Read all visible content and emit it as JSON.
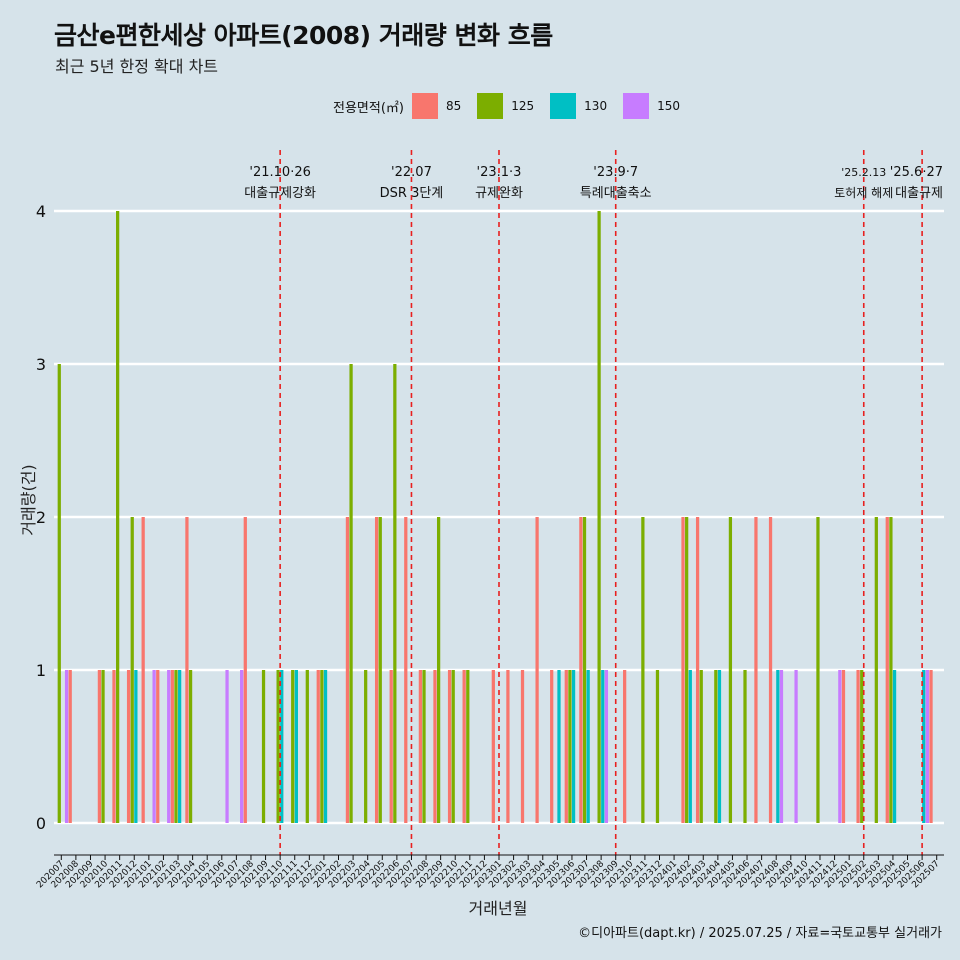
{
  "title": "금산e편한세상 아파트(2008) 거래량 변화 흐름",
  "subtitle": "최근 5년 한정 확대 차트",
  "caption": "©디아파트(dapt.kr) / 2025.07.25 / 자료=국토교통부 실거래가",
  "legend": {
    "title": "전용면적(㎡)",
    "items": [
      {
        "label": "85",
        "color": "#f8766d"
      },
      {
        "label": "125",
        "color": "#7cae00"
      },
      {
        "label": "130",
        "color": "#00bfc4"
      },
      {
        "label": "150",
        "color": "#c77cff"
      }
    ]
  },
  "chart_data": {
    "type": "bar",
    "xlabel": "거래년월",
    "ylabel": "거래량(건)",
    "ylim": [
      0,
      4
    ],
    "yticks": [
      0,
      1,
      2,
      3,
      4
    ],
    "grid": true,
    "legend_position": "top",
    "categories": [
      "202007",
      "202008",
      "202009",
      "202010",
      "202011",
      "202012",
      "202101",
      "202102",
      "202103",
      "202104",
      "202105",
      "202106",
      "202107",
      "202108",
      "202109",
      "202110",
      "202111",
      "202112",
      "202201",
      "202202",
      "202203",
      "202204",
      "202205",
      "202206",
      "202207",
      "202208",
      "202209",
      "202210",
      "202211",
      "202212",
      "202301",
      "202302",
      "202303",
      "202304",
      "202305",
      "202306",
      "202307",
      "202308",
      "202309",
      "202310",
      "202311",
      "202312",
      "202401",
      "202402",
      "202403",
      "202404",
      "202405",
      "202406",
      "202407",
      "202408",
      "202409",
      "202410",
      "202411",
      "202412",
      "202501",
      "202502",
      "202503",
      "202504",
      "202505",
      "202506",
      "202507"
    ],
    "series": [
      {
        "name": "85",
        "color": "#f8766d",
        "values": [
          0,
          1,
          0,
          1,
          1,
          1,
          2,
          1,
          1,
          2,
          0,
          0,
          0,
          2,
          0,
          0,
          0,
          0,
          1,
          0,
          2,
          0,
          2,
          1,
          2,
          1,
          1,
          1,
          1,
          0,
          1,
          1,
          1,
          2,
          1,
          1,
          2,
          0,
          0,
          1,
          0,
          0,
          0,
          2,
          2,
          0,
          0,
          0,
          2,
          2,
          0,
          0,
          0,
          0,
          1,
          1,
          0,
          2,
          0,
          0,
          1
        ]
      },
      {
        "name": "125",
        "color": "#7cae00",
        "values": [
          3,
          0,
          0,
          1,
          4,
          2,
          0,
          0,
          1,
          1,
          0,
          0,
          0,
          0,
          1,
          1,
          1,
          1,
          1,
          0,
          3,
          1,
          2,
          3,
          0,
          1,
          2,
          1,
          1,
          0,
          0,
          0,
          0,
          0,
          0,
          1,
          2,
          4,
          0,
          0,
          2,
          1,
          0,
          2,
          1,
          1,
          2,
          1,
          0,
          0,
          0,
          0,
          2,
          0,
          0,
          1,
          2,
          2,
          0,
          0,
          0
        ]
      },
      {
        "name": "130",
        "color": "#00bfc4",
        "values": [
          0,
          0,
          0,
          0,
          0,
          1,
          0,
          0,
          1,
          0,
          0,
          0,
          0,
          0,
          0,
          1,
          1,
          0,
          1,
          0,
          0,
          0,
          0,
          0,
          0,
          0,
          0,
          0,
          0,
          0,
          0,
          0,
          0,
          0,
          1,
          1,
          1,
          1,
          0,
          0,
          0,
          0,
          0,
          1,
          0,
          1,
          0,
          0,
          0,
          1,
          0,
          0,
          0,
          0,
          0,
          0,
          0,
          1,
          0,
          1,
          0
        ]
      },
      {
        "name": "150",
        "color": "#c77cff",
        "values": [
          1,
          0,
          0,
          0,
          0,
          0,
          1,
          1,
          0,
          0,
          0,
          1,
          1,
          0,
          0,
          0,
          0,
          0,
          0,
          0,
          0,
          0,
          0,
          0,
          0,
          0,
          0,
          0,
          0,
          0,
          0,
          0,
          0,
          0,
          0,
          0,
          0,
          1,
          0,
          0,
          0,
          0,
          0,
          0,
          0,
          0,
          0,
          0,
          0,
          1,
          1,
          0,
          0,
          1,
          0,
          0,
          0,
          0,
          0,
          1,
          0
        ]
      }
    ],
    "annotations": [
      {
        "x": "202110",
        "date": "'21.10·26",
        "label": "대출규제강화"
      },
      {
        "x": "202207",
        "date": "'22.07",
        "label": "DSR 3단계"
      },
      {
        "x": "202301",
        "date": "'23.1·3",
        "label": "규제완화"
      },
      {
        "x": "202309",
        "date": "'23.9·7",
        "label": "특례대출축소"
      },
      {
        "x": "202502",
        "date": "'25.2.13",
        "label": "토허제 해제"
      },
      {
        "x": "202506",
        "date": "'25.6·27",
        "label": "대출규제"
      }
    ]
  }
}
